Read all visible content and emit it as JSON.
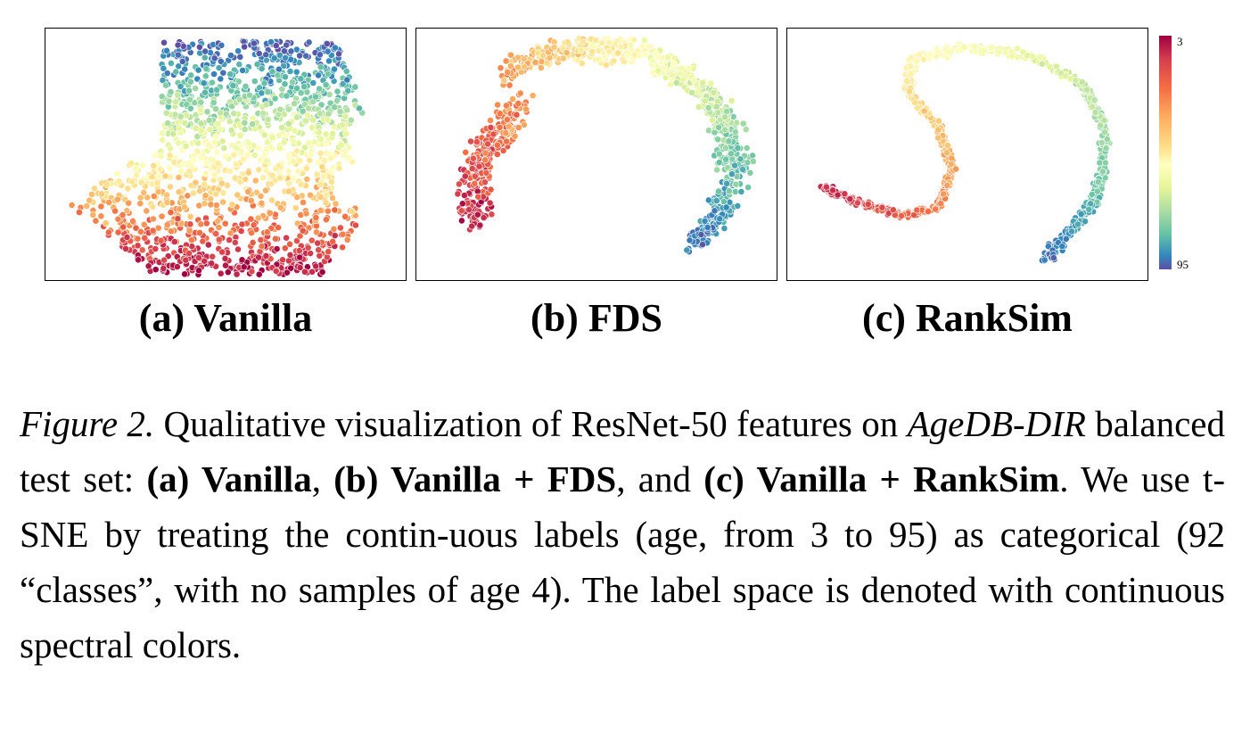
{
  "panels": [
    {
      "id": "a",
      "label": "(a) Vanilla"
    },
    {
      "id": "b",
      "label": "(b) FDS"
    },
    {
      "id": "c",
      "label": "(c) RankSim"
    }
  ],
  "colorbar": {
    "min_label": "3",
    "max_label": "95",
    "colormap": "Spectral"
  },
  "colors": [
    "#9e0142",
    "#d53e4f",
    "#f46d43",
    "#fdae61",
    "#fee08b",
    "#ffffbf",
    "#e6f598",
    "#abdda4",
    "#66c2a5",
    "#3288bd",
    "#5e4fa2"
  ],
  "caption": {
    "fig_label": "Figure 2.",
    "t1": " Qualitative visualization of ResNet-50 features on ",
    "dataset": "AgeDB-DIR",
    "t2": " balanced test set: ",
    "m1": "(a) Vanilla",
    "t3": ", ",
    "m2": "(b) Vanilla + FDS",
    "t4": ", and ",
    "m3": "(c) Vanilla + RankSim",
    "t5": ". We use t-SNE by treating the contin-uous labels (age, from 3 to 95) as categorical (92 “classes”, with no samples of age 4). The label space is denoted with continuous spectral colors."
  }
}
